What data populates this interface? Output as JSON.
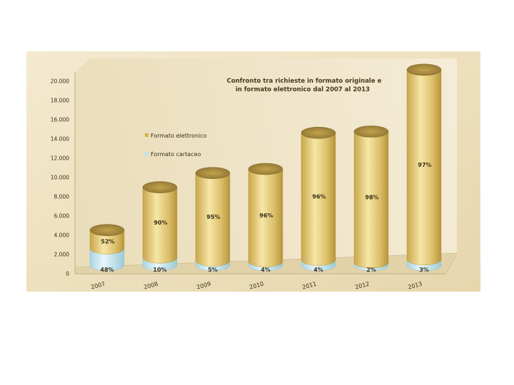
{
  "chart_data": {
    "type": "bar",
    "title_lines": [
      "Confronto tra richieste in formato originale e",
      "in formato elettronico dal 2007 al 2013"
    ],
    "categories": [
      "2007",
      "2008",
      "2009",
      "2010",
      "2011",
      "2012",
      "2013"
    ],
    "ylim": [
      0,
      20000
    ],
    "yticks": [
      "0",
      "2.000",
      "4.000",
      "6.000",
      "8.000",
      "10.000",
      "12.000",
      "14.000",
      "16.000",
      "18.000",
      "20.000"
    ],
    "ytick_values": [
      0,
      2000,
      4000,
      6000,
      8000,
      10000,
      12000,
      14000,
      16000,
      18000,
      20000
    ],
    "stacked": true,
    "grid": false,
    "legend_position": "left",
    "series": [
      {
        "name": "Formato cartaceo",
        "color": "#bfe3ec",
        "values": [
          1750,
          800,
          480,
          400,
          560,
          290,
          610
        ],
        "labels": [
          "48%",
          "10%",
          "5%",
          "4%",
          "4%",
          "2%",
          "3%"
        ]
      },
      {
        "name": "Formato elettronico",
        "color": "#d9b34a",
        "values": [
          1900,
          7300,
          9100,
          9600,
          13200,
          13600,
          19700
        ],
        "labels": [
          "52%",
          "90%",
          "95%",
          "96%",
          "96%",
          "98%",
          "97%"
        ]
      }
    ]
  }
}
